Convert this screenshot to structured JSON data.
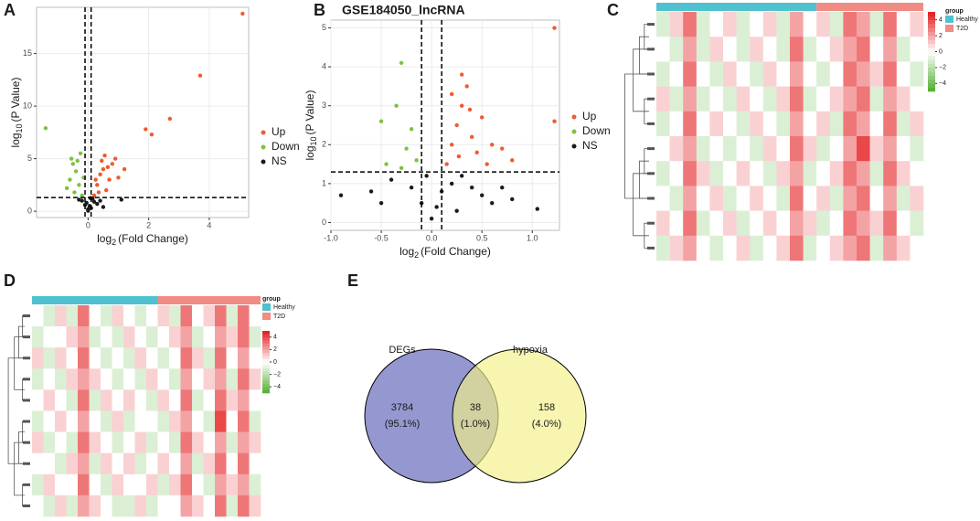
{
  "panels": [
    "A",
    "B",
    "C",
    "D",
    "E"
  ],
  "chart_data": [
    {
      "type": "volcano",
      "xlabel": {
        "base": "log",
        "sub": "2",
        "rest": "(Fold Change)"
      },
      "ylabel": {
        "base": "log",
        "sub": "10",
        "rest": "(P Value)"
      },
      "xlim": [
        -1.7,
        5.3
      ],
      "ylim": [
        -0.6,
        19.4
      ],
      "xticks": [
        0,
        2,
        4
      ],
      "yticks": [
        0,
        5,
        10,
        15
      ],
      "vlines": [
        -0.1,
        0.1
      ],
      "hline": 1.3,
      "grid": true,
      "series": [
        {
          "name": "Up",
          "color": "#ef5a30",
          "x": [
            0.2,
            0.3,
            0.4,
            0.5,
            0.6,
            0.7,
            0.8,
            0.9,
            0.35,
            0.45,
            1.0,
            0.55,
            1.9,
            2.1,
            2.7,
            3.7,
            5.1,
            0.25,
            0.65,
            1.2
          ],
          "values": [
            1.5,
            2.5,
            3.5,
            4,
            2,
            3,
            4.5,
            5,
            1.8,
            4.8,
            3.2,
            5.3,
            7.8,
            7.3,
            8.8,
            12.9,
            18.8,
            3.0,
            4.2,
            4.0
          ]
        },
        {
          "name": "Down",
          "color": "#7cc242",
          "x": [
            -0.2,
            -0.3,
            -0.4,
            -0.5,
            -0.6,
            -0.25,
            -0.35,
            -0.7,
            -1.4,
            -0.45,
            -0.15,
            -0.55
          ],
          "values": [
            1.5,
            2.5,
            3.8,
            4.5,
            3,
            5.5,
            4.8,
            2.2,
            7.9,
            1.8,
            3.2,
            5.0
          ]
        },
        {
          "name": "NS",
          "color": "#1a1a1a",
          "x": [
            0,
            0.05,
            -0.05,
            0.1,
            -0.1,
            0.2,
            -0.2,
            0.3,
            0.5,
            1.1,
            0.15,
            -0.3,
            0.4,
            0.0,
            0.08
          ],
          "values": [
            0.2,
            0.5,
            0.8,
            0.3,
            0.6,
            0.9,
            1.0,
            0.7,
            0.4,
            1.1,
            1.2,
            1.1,
            1.0,
            0.05,
            1.25
          ]
        }
      ]
    },
    {
      "type": "volcano",
      "title": "GSE184050_lncRNA",
      "xlabel": {
        "base": "log",
        "sub": "2",
        "rest": "(Fold Change)"
      },
      "ylabel": {
        "base": "log",
        "sub": "10",
        "rest": "(P Value)"
      },
      "xlim": [
        -1.0,
        1.27
      ],
      "ylim": [
        -0.2,
        5.2
      ],
      "xticks": [
        {
          "value": -1.0,
          "label": "-1.0"
        },
        -0.5,
        {
          "value": 0.0,
          "label": "0.0"
        },
        0.5,
        {
          "value": 1.0,
          "label": "1.0"
        }
      ],
      "yticks": [
        0,
        1,
        2,
        3,
        4,
        5
      ],
      "vlines": [
        -0.1,
        0.1
      ],
      "hline": 1.3,
      "grid": true,
      "series": [
        {
          "name": "Up",
          "color": "#ef5a30",
          "x": [
            0.15,
            0.2,
            0.25,
            0.3,
            0.35,
            0.4,
            0.45,
            0.5,
            0.55,
            0.6,
            0.3,
            0.2,
            0.7,
            0.8,
            1.22,
            1.22,
            0.38,
            0.27
          ],
          "values": [
            1.5,
            2,
            2.5,
            3,
            3.5,
            2.2,
            1.8,
            2.7,
            1.5,
            2.0,
            3.8,
            3.3,
            1.9,
            1.6,
            5.0,
            2.6,
            2.9,
            1.7
          ]
        },
        {
          "name": "Down",
          "color": "#7cc242",
          "x": [
            -0.3,
            -0.35,
            -0.5,
            -0.2,
            -0.45,
            -0.25,
            -0.15,
            -0.3
          ],
          "values": [
            4.1,
            3.0,
            2.6,
            2.4,
            1.5,
            1.9,
            1.6,
            1.4
          ]
        },
        {
          "name": "NS",
          "color": "#1a1a1a",
          "x": [
            0,
            0.05,
            0.1,
            0.2,
            0.3,
            0.4,
            0.5,
            0.6,
            0.7,
            -0.1,
            -0.2,
            -0.4,
            -0.6,
            -0.9,
            -0.5,
            1.05,
            0.8,
            -0.05,
            0.25
          ],
          "values": [
            0.1,
            0.4,
            0.8,
            1.0,
            1.2,
            0.9,
            0.7,
            0.5,
            0.9,
            0.5,
            0.9,
            1.1,
            0.8,
            0.7,
            0.5,
            0.35,
            0.6,
            1.2,
            0.3
          ]
        }
      ]
    },
    {
      "type": "heatmap",
      "legend_title": "group",
      "groups": [
        {
          "name": "Healthy",
          "color": "#4fc1cf",
          "columns": 12
        },
        {
          "name": "T2D",
          "color": "#f08c84",
          "columns": 8
        }
      ],
      "scale_lim": [
        -5,
        5
      ],
      "scale_colors": [
        "#4daf2c",
        "#ffffff",
        "#e41a1c"
      ],
      "scale_ticks": [
        4,
        2,
        0,
        {
          "value": -2,
          "label": "−2"
        },
        {
          "value": -4,
          "label": "−4"
        }
      ],
      "values": [
        [
          -1,
          1,
          3,
          -1,
          0,
          1,
          -1,
          0,
          1,
          -1,
          2,
          0,
          1,
          -1,
          3,
          2,
          -1,
          3,
          0,
          1
        ],
        [
          0,
          -1,
          2,
          -1,
          1,
          0,
          -1,
          1,
          0,
          -1,
          3,
          -1,
          0,
          1,
          2,
          3,
          0,
          2,
          -1,
          0
        ],
        [
          -1,
          0,
          3,
          0,
          -1,
          1,
          0,
          -1,
          1,
          0,
          2,
          0,
          -1,
          0,
          3,
          2,
          1,
          3,
          0,
          -1
        ],
        [
          1,
          -1,
          2,
          -1,
          0,
          -1,
          1,
          0,
          -1,
          1,
          3,
          -1,
          0,
          1,
          2,
          3,
          -1,
          2,
          1,
          0
        ],
        [
          -1,
          0,
          3,
          0,
          1,
          0,
          -1,
          1,
          0,
          -1,
          2,
          0,
          1,
          -1,
          3,
          2,
          0,
          3,
          -1,
          1
        ],
        [
          0,
          1,
          2,
          -1,
          0,
          -1,
          0,
          -1,
          1,
          0,
          3,
          1,
          -1,
          0,
          2,
          4,
          1,
          2,
          0,
          -1
        ],
        [
          -1,
          0,
          3,
          1,
          -1,
          0,
          1,
          0,
          -1,
          1,
          2,
          -1,
          0,
          1,
          3,
          2,
          -1,
          3,
          1,
          0
        ],
        [
          0,
          -1,
          2,
          0,
          1,
          -1,
          0,
          1,
          0,
          -1,
          3,
          0,
          1,
          -1,
          2,
          3,
          0,
          2,
          -1,
          1
        ],
        [
          1,
          0,
          3,
          -1,
          0,
          1,
          -1,
          0,
          1,
          0,
          2,
          1,
          -1,
          0,
          3,
          2,
          1,
          3,
          0,
          -1
        ],
        [
          -1,
          1,
          2,
          0,
          -1,
          0,
          1,
          -1,
          0,
          1,
          3,
          -1,
          0,
          1,
          2,
          3,
          -1,
          2,
          1,
          0
        ]
      ]
    },
    {
      "type": "heatmap",
      "legend_title": "group",
      "groups": [
        {
          "name": "Healthy",
          "color": "#4fc1cf",
          "columns": 11
        },
        {
          "name": "T2D",
          "color": "#f08c84",
          "columns": 9
        }
      ],
      "scale_lim": [
        -5,
        5
      ],
      "scale_colors": [
        "#4daf2c",
        "#ffffff",
        "#e41a1c"
      ],
      "scale_ticks": [
        4,
        2,
        0,
        {
          "value": -2,
          "label": "−2"
        },
        {
          "value": -4,
          "label": "−4"
        }
      ],
      "values": [
        [
          0,
          -1,
          1,
          -1,
          3,
          0,
          -1,
          1,
          0,
          -1,
          0,
          1,
          -1,
          3,
          0,
          1,
          3,
          -1,
          3,
          0
        ],
        [
          -1,
          0,
          0,
          1,
          2,
          -1,
          0,
          -1,
          1,
          0,
          -1,
          0,
          1,
          2,
          -1,
          0,
          2,
          1,
          3,
          -1
        ],
        [
          1,
          -1,
          1,
          0,
          3,
          0,
          -1,
          0,
          -1,
          1,
          0,
          -1,
          0,
          3,
          1,
          -1,
          3,
          0,
          2,
          0
        ],
        [
          -1,
          0,
          -1,
          1,
          2,
          1,
          0,
          -1,
          0,
          -1,
          1,
          0,
          -1,
          2,
          0,
          1,
          2,
          -1,
          3,
          1
        ],
        [
          0,
          1,
          0,
          -1,
          3,
          -1,
          1,
          0,
          1,
          0,
          -1,
          1,
          0,
          3,
          -1,
          0,
          3,
          1,
          2,
          0
        ],
        [
          -1,
          0,
          1,
          0,
          2,
          0,
          -1,
          1,
          -1,
          0,
          0,
          -1,
          1,
          2,
          0,
          -1,
          4,
          0,
          3,
          -1
        ],
        [
          1,
          -1,
          0,
          -1,
          3,
          1,
          0,
          -1,
          0,
          1,
          -1,
          0,
          -1,
          3,
          1,
          0,
          2,
          -1,
          2,
          1
        ],
        [
          0,
          0,
          -1,
          1,
          2,
          -1,
          1,
          0,
          1,
          -1,
          0,
          1,
          0,
          2,
          -1,
          1,
          3,
          0,
          3,
          0
        ],
        [
          -1,
          1,
          0,
          0,
          3,
          0,
          -1,
          1,
          0,
          0,
          1,
          -1,
          1,
          3,
          0,
          -1,
          2,
          1,
          2,
          -1
        ],
        [
          0,
          -1,
          1,
          -1,
          2,
          1,
          0,
          -1,
          -1,
          1,
          -1,
          0,
          0,
          2,
          1,
          0,
          3,
          -1,
          3,
          1
        ]
      ]
    }
  ],
  "venn": {
    "sets": [
      {
        "name": "DEGs",
        "color": "#7b7ec4"
      },
      {
        "name": "hypoxia",
        "color": "#f3ef85"
      }
    ],
    "regions": [
      {
        "count": "3784",
        "percent": "(95.1%)"
      },
      {
        "count": "38",
        "percent": "(1.0%)"
      },
      {
        "count": "158",
        "percent": "(4.0%)"
      }
    ]
  }
}
